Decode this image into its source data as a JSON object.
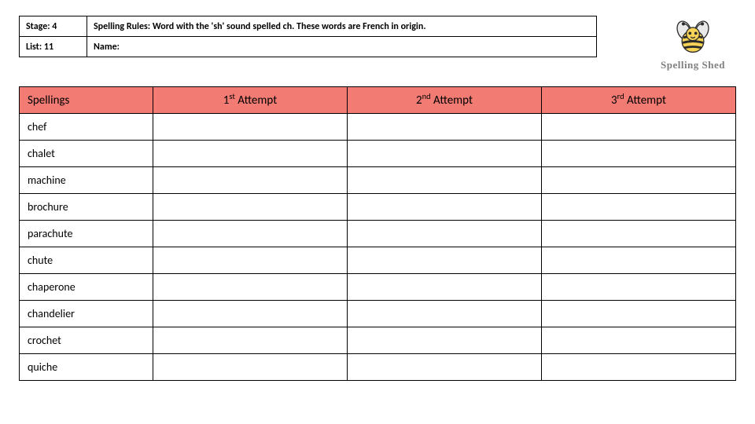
{
  "meta": {
    "stage_label": "Stage: 4",
    "list_label": "List: 11",
    "rules_label": "Spelling Rules:  Word with the 'sh' sound spelled ch.  These words are French in origin.",
    "name_label": "Name:"
  },
  "brand": {
    "name": "Spelling Shed",
    "bee_body_color": "#f7d358",
    "bee_stripe_color": "#2b2b2b",
    "bee_wing_color": "#e9e9e9",
    "bee_outline": "#2b2b2b"
  },
  "table": {
    "header_bg": "#f27c73",
    "columns": {
      "spellings": "Spellings",
      "attempt1_prefix": "1",
      "attempt1_ord": "st",
      "attempt1_suffix": " Attempt",
      "attempt2_prefix": "2",
      "attempt2_ord": "nd",
      "attempt2_suffix": " Attempt",
      "attempt3_prefix": "3",
      "attempt3_ord": "rd",
      "attempt3_suffix": " Attempt"
    },
    "rows": [
      {
        "word": "chef"
      },
      {
        "word": "chalet"
      },
      {
        "word": "machine"
      },
      {
        "word": "brochure"
      },
      {
        "word": "parachute"
      },
      {
        "word": "chute"
      },
      {
        "word": "chaperone"
      },
      {
        "word": "chandelier"
      },
      {
        "word": "crochet"
      },
      {
        "word": "quiche"
      }
    ]
  }
}
